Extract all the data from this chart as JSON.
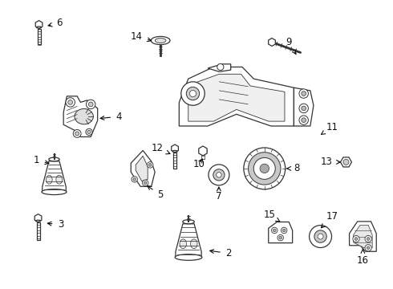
{
  "bg_color": "#ffffff",
  "line_color": "#333333",
  "label_color": "#111111",
  "figsize": [
    4.9,
    3.6
  ],
  "dpi": 100
}
